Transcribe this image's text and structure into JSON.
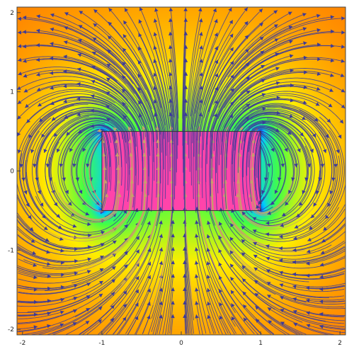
{
  "chart_data": {
    "type": "vector_field_density",
    "title": "",
    "xlabel": "",
    "ylabel": "",
    "xlim": [
      -2.07,
      2.07
    ],
    "ylim": [
      -2.07,
      2.07
    ],
    "x_ticks": [
      {
        "value": -2,
        "label": "-2"
      },
      {
        "value": -1,
        "label": "-1"
      },
      {
        "value": 0,
        "label": "0"
      },
      {
        "value": 1,
        "label": "1"
      },
      {
        "value": 2,
        "label": "2"
      }
    ],
    "y_ticks": [
      {
        "value": 2,
        "label": "2"
      },
      {
        "value": 1,
        "label": "1"
      },
      {
        "value": 0,
        "label": "0"
      },
      {
        "value": -1,
        "label": "-1"
      },
      {
        "value": -2,
        "label": "-2"
      }
    ],
    "magnet": {
      "x": [
        -1,
        1
      ],
      "y": [
        -0.5,
        0.5
      ]
    },
    "streamline_direction": "inside the rectangle field points upward (+y); outside, field loops from top back around to bottom",
    "color_scale": [
      "#ff2200",
      "#ff8800",
      "#ffee00",
      "#44ff44",
      "#00ccff",
      "#0044ff",
      "#ff44aa"
    ],
    "grid": false,
    "legend": "none"
  }
}
